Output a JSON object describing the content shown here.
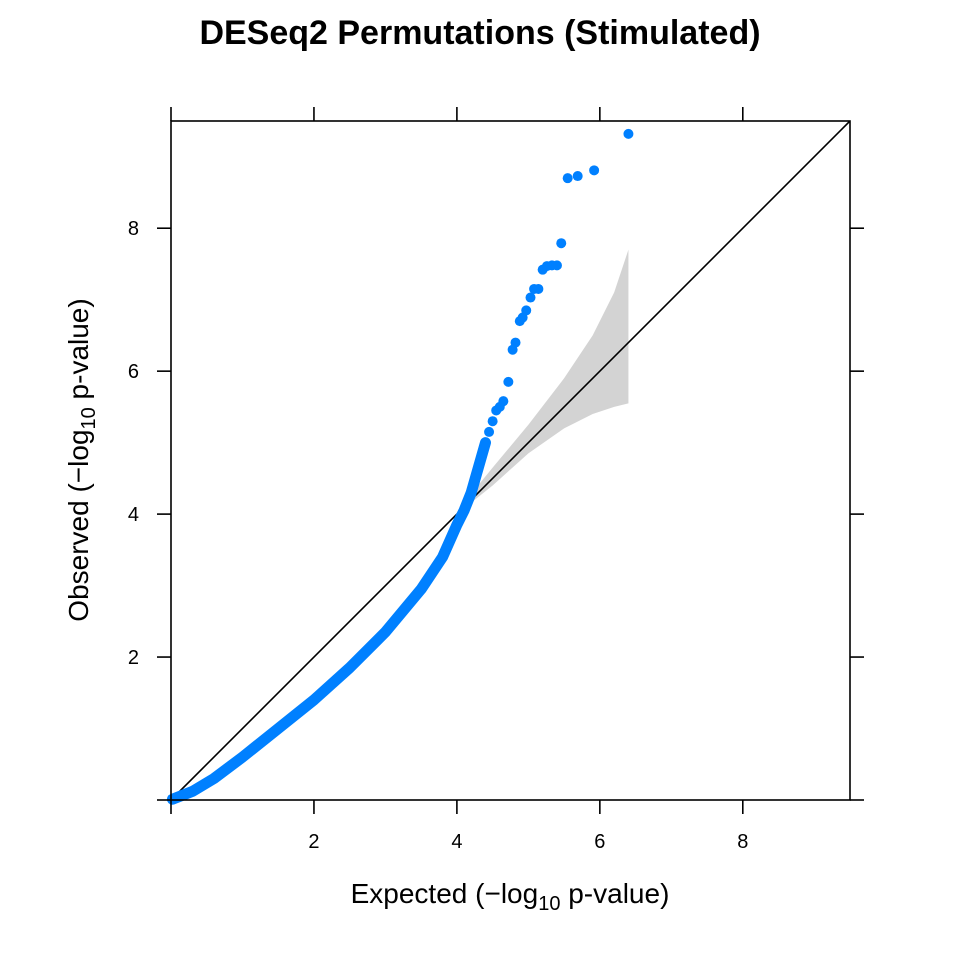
{
  "chart_data": {
    "type": "scatter",
    "title": "DESeq2 Permutations (Stimulated)",
    "xlabel": {
      "prefix": "Expected (",
      "minus": "−",
      "log": "log",
      "sub": "10",
      "suffix": " p-value)"
    },
    "ylabel": {
      "prefix": "Observed (",
      "minus": "−",
      "log": "log",
      "sub": "10",
      "suffix": " p-value)"
    },
    "xlim": [
      0,
      9.5
    ],
    "ylim": [
      0,
      9.5
    ],
    "x_ticks": [
      2,
      4,
      6,
      8
    ],
    "y_ticks": [
      2,
      4,
      6,
      8
    ],
    "grid": false,
    "reference_line": {
      "from": [
        0,
        0
      ],
      "to": [
        9.5,
        9.5
      ],
      "color": "#000000"
    },
    "confidence_band": {
      "color": "#d3d3d3",
      "upper": [
        [
          4.1,
          4.16
        ],
        [
          4.5,
          4.65
        ],
        [
          5.0,
          5.25
        ],
        [
          5.5,
          5.9
        ],
        [
          5.9,
          6.5
        ],
        [
          6.2,
          7.1
        ],
        [
          6.4,
          7.7
        ]
      ],
      "lower": [
        [
          4.1,
          4.08
        ],
        [
          4.5,
          4.4
        ],
        [
          5.0,
          4.85
        ],
        [
          5.5,
          5.2
        ],
        [
          5.9,
          5.4
        ],
        [
          6.2,
          5.5
        ],
        [
          6.4,
          5.55
        ]
      ]
    },
    "series": [
      {
        "color": "#0080ff",
        "curve": [
          [
            0.02,
            0.01
          ],
          [
            0.3,
            0.12
          ],
          [
            0.6,
            0.3
          ],
          [
            1.0,
            0.6
          ],
          [
            1.5,
            1.0
          ],
          [
            2.0,
            1.4
          ],
          [
            2.5,
            1.85
          ],
          [
            3.0,
            2.35
          ],
          [
            3.5,
            2.95
          ],
          [
            3.8,
            3.4
          ],
          [
            4.0,
            3.85
          ],
          [
            4.1,
            4.05
          ],
          [
            4.2,
            4.3
          ],
          [
            4.3,
            4.65
          ],
          [
            4.4,
            5.0
          ]
        ],
        "points": [
          [
            4.45,
            5.15
          ],
          [
            4.5,
            5.3
          ],
          [
            4.55,
            5.45
          ],
          [
            4.6,
            5.5
          ],
          [
            4.65,
            5.58
          ],
          [
            4.72,
            5.85
          ],
          [
            4.78,
            6.3
          ],
          [
            4.82,
            6.4
          ],
          [
            4.88,
            6.7
          ],
          [
            4.92,
            6.75
          ],
          [
            4.97,
            6.85
          ],
          [
            5.03,
            7.03
          ],
          [
            5.08,
            7.15
          ],
          [
            5.14,
            7.15
          ],
          [
            5.2,
            7.42
          ],
          [
            5.26,
            7.47
          ],
          [
            5.33,
            7.48
          ],
          [
            5.4,
            7.48
          ],
          [
            5.46,
            7.79
          ],
          [
            5.55,
            8.7
          ],
          [
            5.69,
            8.73
          ],
          [
            5.92,
            8.81
          ],
          [
            6.4,
            9.32
          ]
        ]
      }
    ]
  }
}
